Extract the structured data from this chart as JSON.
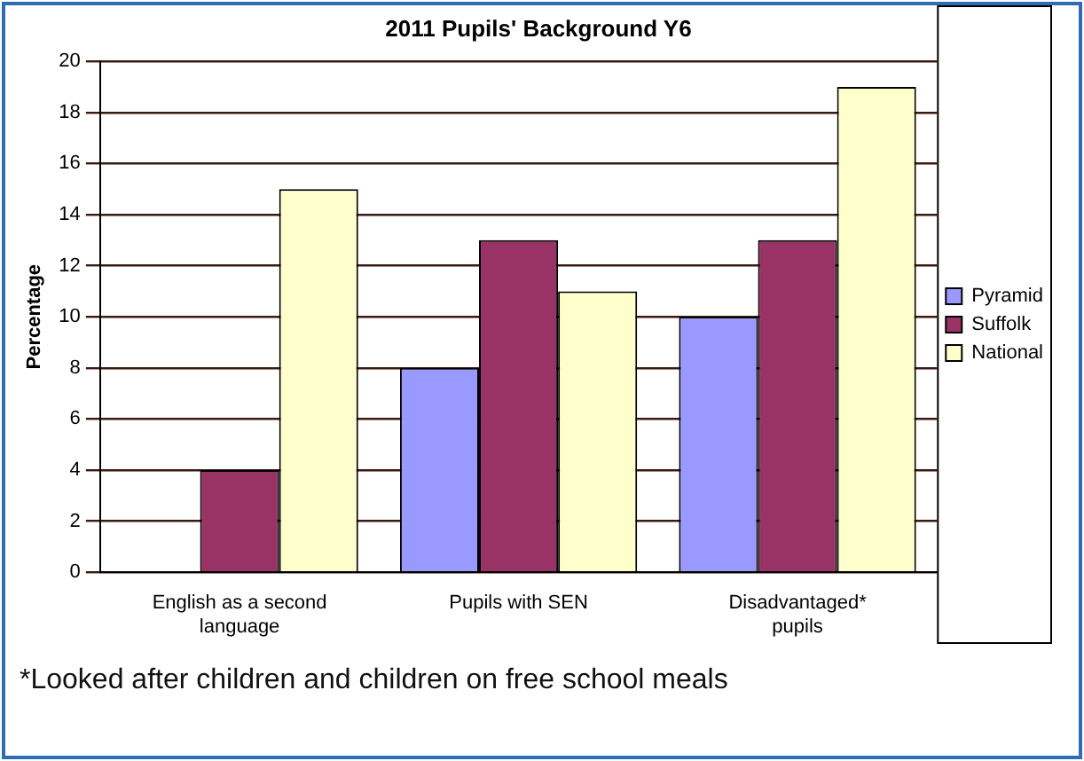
{
  "chart_data": {
    "type": "bar",
    "title": "2011 Pupils' Background Y6",
    "ylabel": "Percentage",
    "categories": [
      "English as a second language",
      "Pupils with SEN",
      "Disadvantaged* pupils"
    ],
    "series": [
      {
        "name": "Pyramid",
        "color": "#9999ff",
        "values": [
          0,
          8,
          10
        ]
      },
      {
        "name": "Suffolk",
        "color": "#993366",
        "values": [
          4,
          13,
          13
        ]
      },
      {
        "name": "National",
        "color": "#ffffcc",
        "values": [
          15,
          11,
          19
        ]
      }
    ],
    "ylim": [
      0,
      20
    ],
    "yticks": [
      0,
      2,
      4,
      6,
      8,
      10,
      12,
      14,
      16,
      18,
      20
    ],
    "grid": "y",
    "legend": "right",
    "annotations": [
      "*Looked after children and children on free school meals"
    ]
  }
}
